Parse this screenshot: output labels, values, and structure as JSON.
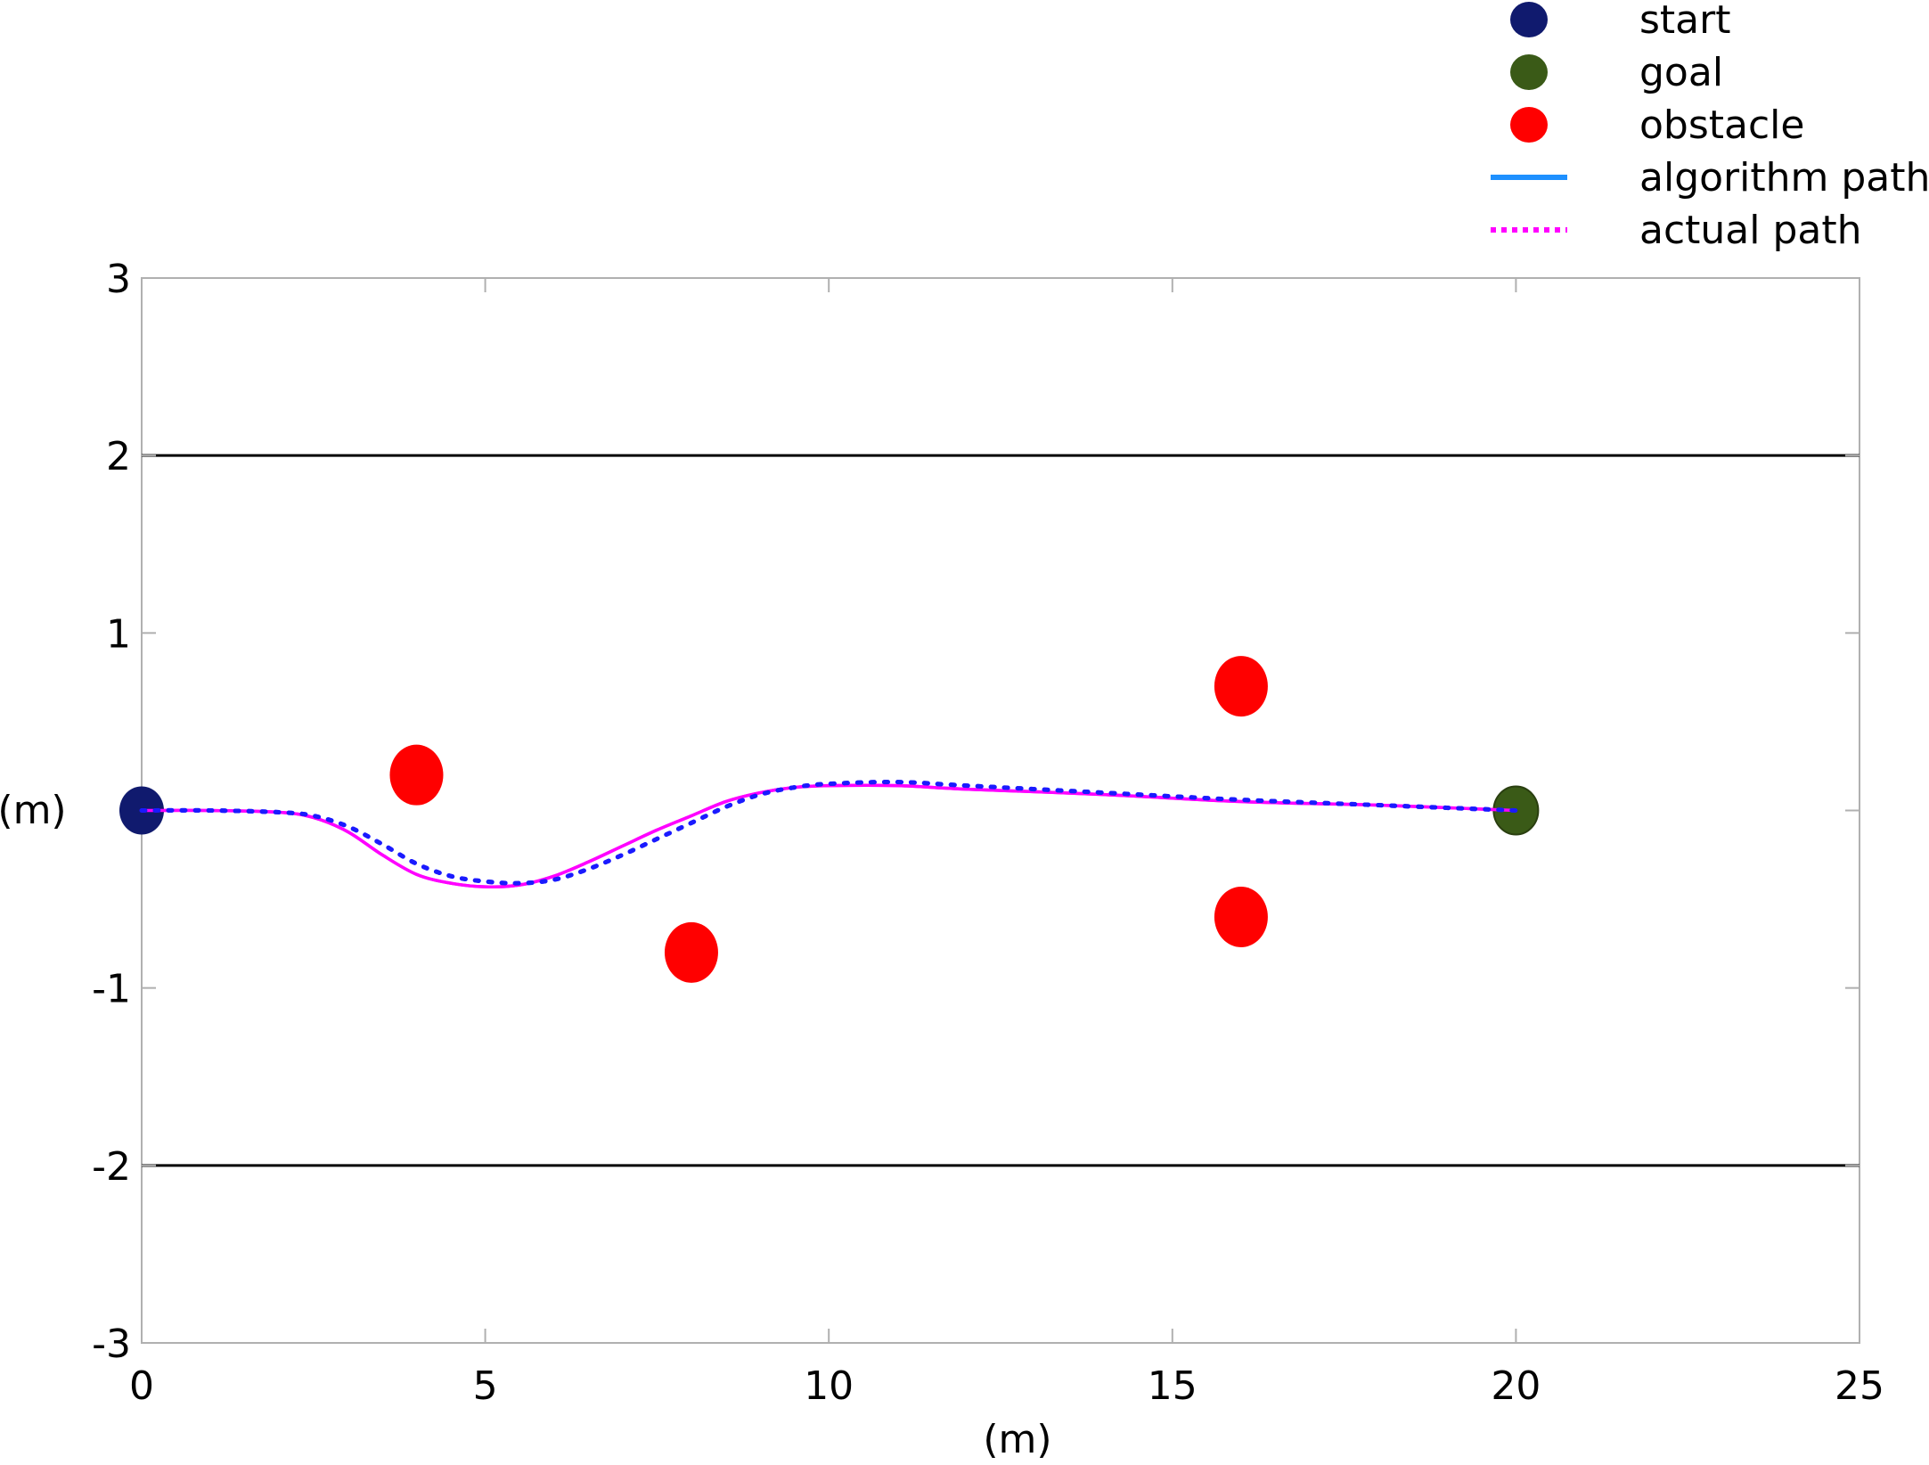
{
  "chart_data": {
    "type": "scatter",
    "xlabel": "(m)",
    "ylabel": "(m)",
    "xlim": [
      0,
      25
    ],
    "ylim": [
      -3,
      3
    ],
    "x_ticks": [
      0,
      5,
      10,
      15,
      20,
      25
    ],
    "y_ticks": [
      -3,
      -2,
      -1,
      1,
      2,
      3
    ],
    "grid": false,
    "legend_position": "top-right, above plot",
    "boundaries": [
      {
        "y": 2,
        "color": "#000000"
      },
      {
        "y": -2,
        "color": "#000000"
      }
    ],
    "points": [
      {
        "series": "start",
        "x": 0,
        "y": 0,
        "color": "#101a6e"
      },
      {
        "series": "goal",
        "x": 20,
        "y": 0,
        "color": "#3a5a17"
      },
      {
        "series": "obstacle",
        "x": 4,
        "y": 0.2,
        "color": "#ff0000"
      },
      {
        "series": "obstacle",
        "x": 8,
        "y": -0.8,
        "color": "#ff0000"
      },
      {
        "series": "obstacle",
        "x": 16,
        "y": 0.7,
        "color": "#ff0000"
      },
      {
        "series": "obstacle",
        "x": 16,
        "y": -0.6,
        "color": "#ff0000"
      }
    ],
    "series": [
      {
        "name": "algorithm path",
        "style": "solid",
        "color": "#ff00ff",
        "legend_color": "#1e90ff",
        "x": [
          0,
          1,
          2,
          2.5,
          3,
          3.5,
          4,
          4.5,
          5,
          5.5,
          6,
          6.5,
          7,
          7.5,
          8,
          8.5,
          9,
          9.5,
          10,
          11,
          12,
          14,
          16,
          18,
          20
        ],
        "y": [
          0,
          0,
          -0.01,
          -0.04,
          -0.12,
          -0.25,
          -0.36,
          -0.41,
          -0.43,
          -0.42,
          -0.37,
          -0.29,
          -0.2,
          -0.11,
          -0.03,
          0.05,
          0.1,
          0.13,
          0.14,
          0.14,
          0.12,
          0.09,
          0.05,
          0.03,
          0
        ]
      },
      {
        "name": "actual path",
        "style": "dotted",
        "color": "#1a1aff",
        "legend_color": "#ff00ff",
        "x": [
          0,
          1,
          2,
          2.5,
          3,
          3.5,
          4,
          4.5,
          5,
          5.5,
          6,
          6.5,
          7,
          7.5,
          8,
          8.5,
          9,
          9.5,
          10,
          11,
          12,
          14,
          16,
          18,
          20
        ],
        "y": [
          0,
          0,
          -0.01,
          -0.03,
          -0.09,
          -0.19,
          -0.3,
          -0.37,
          -0.4,
          -0.41,
          -0.39,
          -0.33,
          -0.25,
          -0.16,
          -0.07,
          0.02,
          0.09,
          0.13,
          0.15,
          0.16,
          0.14,
          0.1,
          0.06,
          0.03,
          0
        ]
      }
    ],
    "legend": [
      {
        "label": "start",
        "marker": "circle",
        "color": "#101a6e"
      },
      {
        "label": "goal",
        "marker": "circle",
        "color": "#3a5a17"
      },
      {
        "label": "obstacle",
        "marker": "circle",
        "color": "#ff0000"
      },
      {
        "label": "algorithm path",
        "marker": "line",
        "color": "#1e90ff"
      },
      {
        "label": "actual path",
        "marker": "dotted-line",
        "color": "#ff00ff"
      }
    ]
  }
}
